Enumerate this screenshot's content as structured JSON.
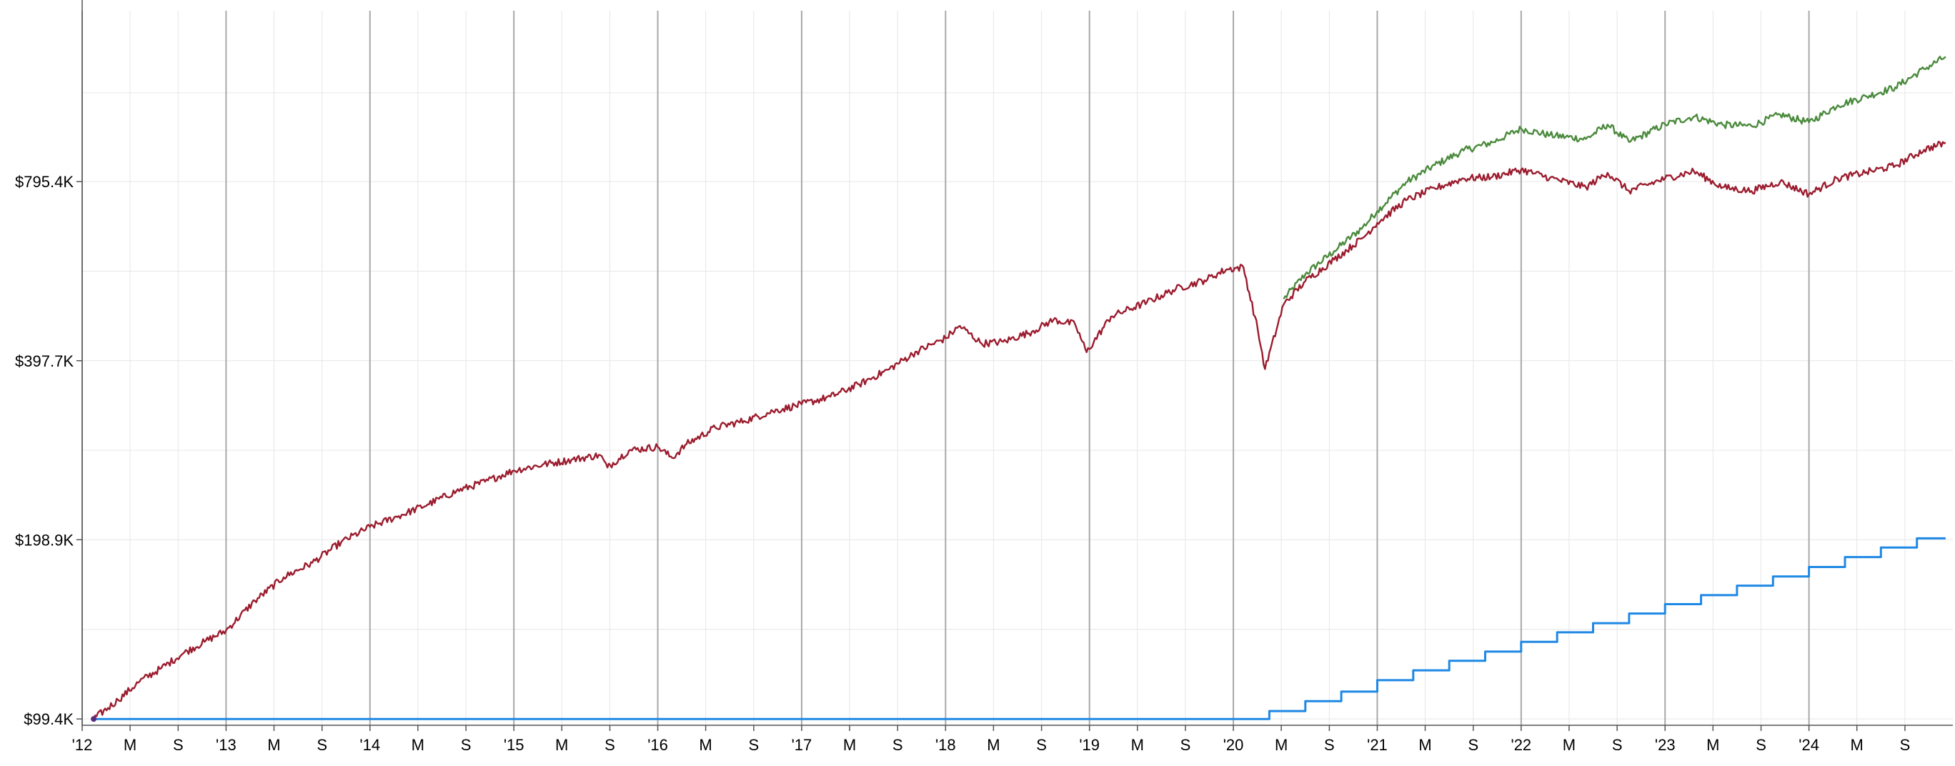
{
  "chart_data": {
    "type": "line",
    "title": "",
    "xlabel": "",
    "ylabel": "",
    "xlim": [
      2012.0,
      2025.0
    ],
    "ylim": [
      97000,
      1520000
    ],
    "y_scale": "log",
    "grid": true,
    "legend": "none",
    "y_ticks": [
      {
        "value": 99400,
        "label": "$99.4K"
      },
      {
        "value": 198900,
        "label": "$198.9K"
      },
      {
        "value": 397700,
        "label": "$397.7K"
      },
      {
        "value": 795400,
        "label": "$795.4K"
      }
    ],
    "x_ticks": [
      {
        "value": 2012.0,
        "label": "'12"
      },
      {
        "value": 2012.333,
        "label": "M"
      },
      {
        "value": 2012.667,
        "label": "S"
      },
      {
        "value": 2013.0,
        "label": "'13"
      },
      {
        "value": 2013.333,
        "label": "M"
      },
      {
        "value": 2013.667,
        "label": "S"
      },
      {
        "value": 2014.0,
        "label": "'14"
      },
      {
        "value": 2014.333,
        "label": "M"
      },
      {
        "value": 2014.667,
        "label": "S"
      },
      {
        "value": 2015.0,
        "label": "'15"
      },
      {
        "value": 2015.333,
        "label": "M"
      },
      {
        "value": 2015.667,
        "label": "S"
      },
      {
        "value": 2016.0,
        "label": "'16"
      },
      {
        "value": 2016.333,
        "label": "M"
      },
      {
        "value": 2016.667,
        "label": "S"
      },
      {
        "value": 2017.0,
        "label": "'17"
      },
      {
        "value": 2017.333,
        "label": "M"
      },
      {
        "value": 2017.667,
        "label": "S"
      },
      {
        "value": 2018.0,
        "label": "'18"
      },
      {
        "value": 2018.333,
        "label": "M"
      },
      {
        "value": 2018.667,
        "label": "S"
      },
      {
        "value": 2019.0,
        "label": "'19"
      },
      {
        "value": 2019.333,
        "label": "M"
      },
      {
        "value": 2019.667,
        "label": "S"
      },
      {
        "value": 2020.0,
        "label": "'20"
      },
      {
        "value": 2020.333,
        "label": "M"
      },
      {
        "value": 2020.667,
        "label": "S"
      },
      {
        "value": 2021.0,
        "label": "'21"
      },
      {
        "value": 2021.333,
        "label": "M"
      },
      {
        "value": 2021.667,
        "label": "S"
      },
      {
        "value": 2022.0,
        "label": "'22"
      },
      {
        "value": 2022.333,
        "label": "M"
      },
      {
        "value": 2022.667,
        "label": "S"
      },
      {
        "value": 2023.0,
        "label": "'23"
      },
      {
        "value": 2023.333,
        "label": "M"
      },
      {
        "value": 2023.667,
        "label": "S"
      },
      {
        "value": 2024.0,
        "label": "'24"
      },
      {
        "value": 2024.333,
        "label": "M"
      },
      {
        "value": 2024.667,
        "label": "S"
      }
    ],
    "series": [
      {
        "color": "#9b1c2e",
        "x": [
          2012.08,
          2012.25,
          2012.4,
          2012.55,
          2012.7,
          2012.85,
          2013.0,
          2013.2,
          2013.4,
          2013.6,
          2013.8,
          2014.0,
          2014.2,
          2014.4,
          2014.6,
          2014.8,
          2015.0,
          2015.2,
          2015.4,
          2015.6,
          2015.65,
          2015.8,
          2016.0,
          2016.1,
          2016.2,
          2016.4,
          2016.6,
          2016.8,
          2017.0,
          2017.2,
          2017.4,
          2017.6,
          2017.8,
          2018.0,
          2018.1,
          2018.25,
          2018.4,
          2018.6,
          2018.75,
          2018.9,
          2018.98,
          2019.15,
          2019.4,
          2019.6,
          2019.8,
          2019.95,
          2020.07,
          2020.17,
          2020.22,
          2020.35,
          2020.5,
          2020.7,
          2020.9,
          2021.0,
          2021.2,
          2021.4,
          2021.6,
          2021.8,
          2022.0,
          2022.2,
          2022.45,
          2022.6,
          2022.75,
          2023.0,
          2023.2,
          2023.4,
          2023.6,
          2023.8,
          2024.0,
          2024.2,
          2024.4,
          2024.6,
          2024.8,
          2024.95
        ],
        "y": [
          99400,
          107000,
          115000,
          121000,
          128000,
          134000,
          140000,
          157000,
          172000,
          182000,
          197000,
          209000,
          218000,
          228000,
          240000,
          249000,
          260000,
          266000,
          271000,
          276000,
          263000,
          281000,
          285000,
          273000,
          288000,
          307000,
          315000,
          327000,
          336000,
          346000,
          363000,
          384000,
          412000,
          434000,
          455000,
          425000,
          428000,
          445000,
          466000,
          458000,
          411000,
          472000,
          499000,
          525000,
          543000,
          566000,
          571000,
          448000,
          385000,
          495000,
          541000,
          588000,
          640000,
          678000,
          740000,
          775000,
          805000,
          810000,
          833000,
          807000,
          778000,
          823000,
          767000,
          805000,
          828000,
          778000,
          767000,
          795000,
          758000,
          805000,
          825000,
          846000,
          900000,
          925000
        ]
      },
      {
        "color": "#4a8a3c",
        "x": [
          2020.35,
          2020.5,
          2020.7,
          2020.9,
          2021.0,
          2021.2,
          2021.4,
          2021.6,
          2021.8,
          2022.0,
          2022.2,
          2022.45,
          2022.6,
          2022.75,
          2023.0,
          2023.2,
          2023.4,
          2023.6,
          2023.8,
          2024.0,
          2024.2,
          2024.4,
          2024.6,
          2024.8,
          2024.95
        ],
        "y": [
          505000,
          556000,
          608000,
          667000,
          710000,
          793000,
          848000,
          897000,
          926000,
          976000,
          952000,
          938000,
          992000,
          927000,
          993000,
          1023000,
          991000,
          987000,
          1031000,
          1000000,
          1069000,
          1106000,
          1146000,
          1230000,
          1290000
        ]
      },
      {
        "color": "#1e88e5",
        "step": true,
        "x": [
          2012.08,
          2020.25,
          2020.5,
          2020.75,
          2021.0,
          2021.25,
          2021.5,
          2021.75,
          2022.0,
          2022.25,
          2022.5,
          2022.75,
          2023.0,
          2023.25,
          2023.5,
          2023.75,
          2024.0,
          2024.25,
          2024.5,
          2024.75,
          2024.95
        ],
        "y": [
          99400,
          102500,
          106500,
          110500,
          115500,
          120000,
          124500,
          129000,
          134000,
          139000,
          144000,
          149500,
          155000,
          160500,
          166500,
          172500,
          179000,
          186000,
          193000,
          200000,
          200000
        ]
      }
    ]
  }
}
